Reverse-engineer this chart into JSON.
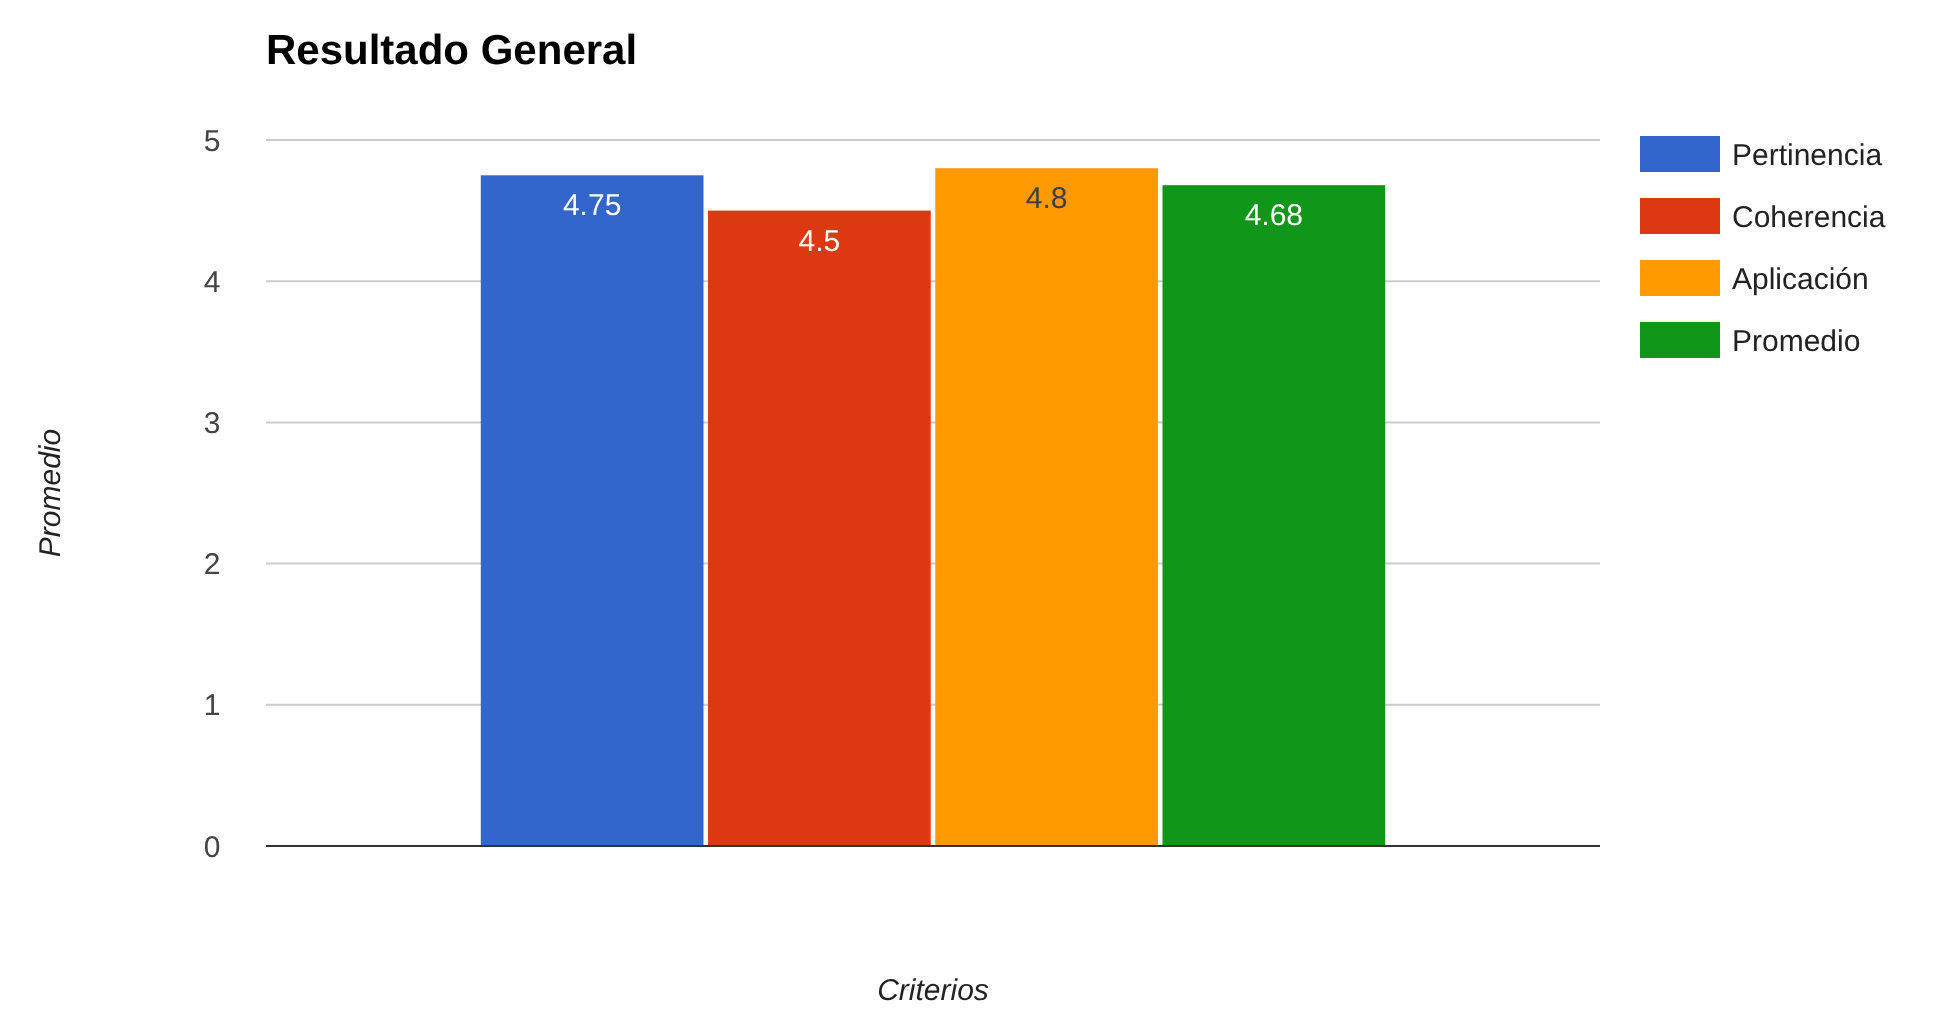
{
  "chart_data": {
    "type": "bar",
    "title": "Resultado General",
    "xlabel": "Criterios",
    "ylabel": "Promedio",
    "categories": [
      null
    ],
    "series": [
      {
        "name": "Pertinencia",
        "color": "#3366cc",
        "values": [
          4.75
        ]
      },
      {
        "name": "Coherencia",
        "color": "#dc3912",
        "values": [
          4.5
        ]
      },
      {
        "name": "Aplicación",
        "color": "#ff9900",
        "values": [
          4.8
        ]
      },
      {
        "name": "Promedio",
        "color": "#109618",
        "values": [
          4.68
        ]
      }
    ],
    "ylim": [
      0,
      5
    ],
    "yticks": [
      0,
      1,
      2,
      3,
      4,
      5
    ],
    "grid": "y",
    "legend": "right",
    "data_labels": true
  }
}
